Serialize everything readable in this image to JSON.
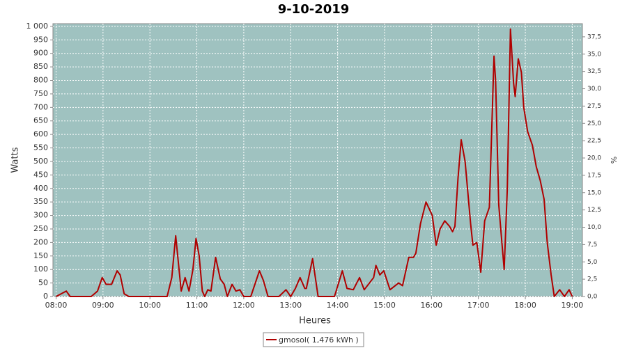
{
  "chart_data": {
    "type": "line",
    "title": "9-10-2019",
    "x_label": "Heures",
    "y_label": "Watts",
    "y2_label": "%",
    "x": [
      "08:00",
      "08:13",
      "08:18",
      "08:45",
      "08:53",
      "08:59",
      "09:04",
      "09:11",
      "09:18",
      "09:22",
      "09:27",
      "09:33",
      "10:22",
      "10:28",
      "10:33",
      "10:40",
      "10:45",
      "10:50",
      "10:55",
      "10:59",
      "11:03",
      "11:07",
      "11:10",
      "11:14",
      "11:18",
      "11:24",
      "11:30",
      "11:35",
      "11:39",
      "11:45",
      "11:50",
      "11:55",
      "12:00",
      "12:09",
      "12:20",
      "12:25",
      "12:31",
      "12:45",
      "12:54",
      "13:00",
      "13:06",
      "13:12",
      "13:18",
      "13:20",
      "13:28",
      "13:35",
      "13:56",
      "14:06",
      "14:12",
      "14:20",
      "14:28",
      "14:34",
      "14:46",
      "14:49",
      "14:54",
      "14:59",
      "15:07",
      "15:18",
      "15:23",
      "15:31",
      "15:37",
      "15:40",
      "15:46",
      "15:53",
      "16:01",
      "16:06",
      "16:11",
      "16:17",
      "16:23",
      "16:27",
      "16:30",
      "16:34",
      "16:38",
      "16:43",
      "16:50",
      "16:53",
      "16:58",
      "17:03",
      "17:08",
      "17:14",
      "17:20",
      "17:22",
      "17:26",
      "17:30",
      "17:33",
      "17:37",
      "17:41",
      "17:45",
      "17:47",
      "17:51",
      "17:55",
      "17:58",
      "18:03",
      "18:09",
      "18:14",
      "18:19",
      "18:24",
      "18:28",
      "18:33",
      "18:37",
      "18:44",
      "18:50",
      "18:56",
      "19:00"
    ],
    "series": [
      {
        "name": "gmosol( 1,476 kWh )",
        "color": "#b00000",
        "values": [
          0,
          20,
          0,
          0,
          20,
          70,
          45,
          45,
          95,
          80,
          10,
          0,
          0,
          70,
          225,
          20,
          70,
          20,
          100,
          215,
          150,
          20,
          0,
          25,
          20,
          145,
          65,
          45,
          0,
          45,
          20,
          25,
          0,
          0,
          95,
          60,
          0,
          0,
          25,
          0,
          30,
          70,
          30,
          30,
          140,
          0,
          0,
          95,
          30,
          25,
          70,
          25,
          70,
          115,
          80,
          95,
          25,
          50,
          40,
          145,
          145,
          160,
          270,
          350,
          300,
          190,
          250,
          280,
          260,
          240,
          260,
          440,
          580,
          500,
          270,
          190,
          200,
          90,
          280,
          330,
          890,
          800,
          340,
          200,
          100,
          400,
          990,
          790,
          740,
          880,
          830,
          700,
          610,
          560,
          480,
          430,
          360,
          200,
          80,
          0,
          25,
          0,
          25,
          0
        ]
      }
    ],
    "xlim": [
      "07:56",
      "19:13"
    ],
    "xticks": [
      "08:00",
      "09:00",
      "10:00",
      "11:00",
      "12:00",
      "13:00",
      "14:00",
      "15:00",
      "16:00",
      "17:00",
      "18:00",
      "19:00"
    ],
    "ylim": [
      0,
      1010
    ],
    "yticks": [
      0,
      50,
      100,
      150,
      200,
      250,
      300,
      350,
      400,
      450,
      500,
      550,
      600,
      650,
      700,
      750,
      800,
      850,
      900,
      950,
      {
        "value": 1000,
        "label": "1 000"
      }
    ],
    "y2lim": [
      0,
      39.4
    ],
    "y2ticks": [
      {
        "value": 0,
        "label": "0,0"
      },
      {
        "value": 2.5,
        "label": "2,5"
      },
      {
        "value": 5,
        "label": "5,0"
      },
      {
        "value": 7.5,
        "label": "7,5"
      },
      {
        "value": 10,
        "label": "10,0"
      },
      {
        "value": 12.5,
        "label": "12,5"
      },
      {
        "value": 15,
        "label": "15,0"
      },
      {
        "value": 17.5,
        "label": "17,5"
      },
      {
        "value": 20,
        "label": "20,0"
      },
      {
        "value": 22.5,
        "label": "22,5"
      },
      {
        "value": 25,
        "label": "25,0"
      },
      {
        "value": 27.5,
        "label": "27,5"
      },
      {
        "value": 30,
        "label": "30,0"
      },
      {
        "value": 32.5,
        "label": "32,5"
      },
      {
        "value": 35,
        "label": "35,0"
      },
      {
        "value": 37.5,
        "label": "37,5"
      }
    ],
    "grid": true,
    "plot_background": "#9fc2c0"
  }
}
